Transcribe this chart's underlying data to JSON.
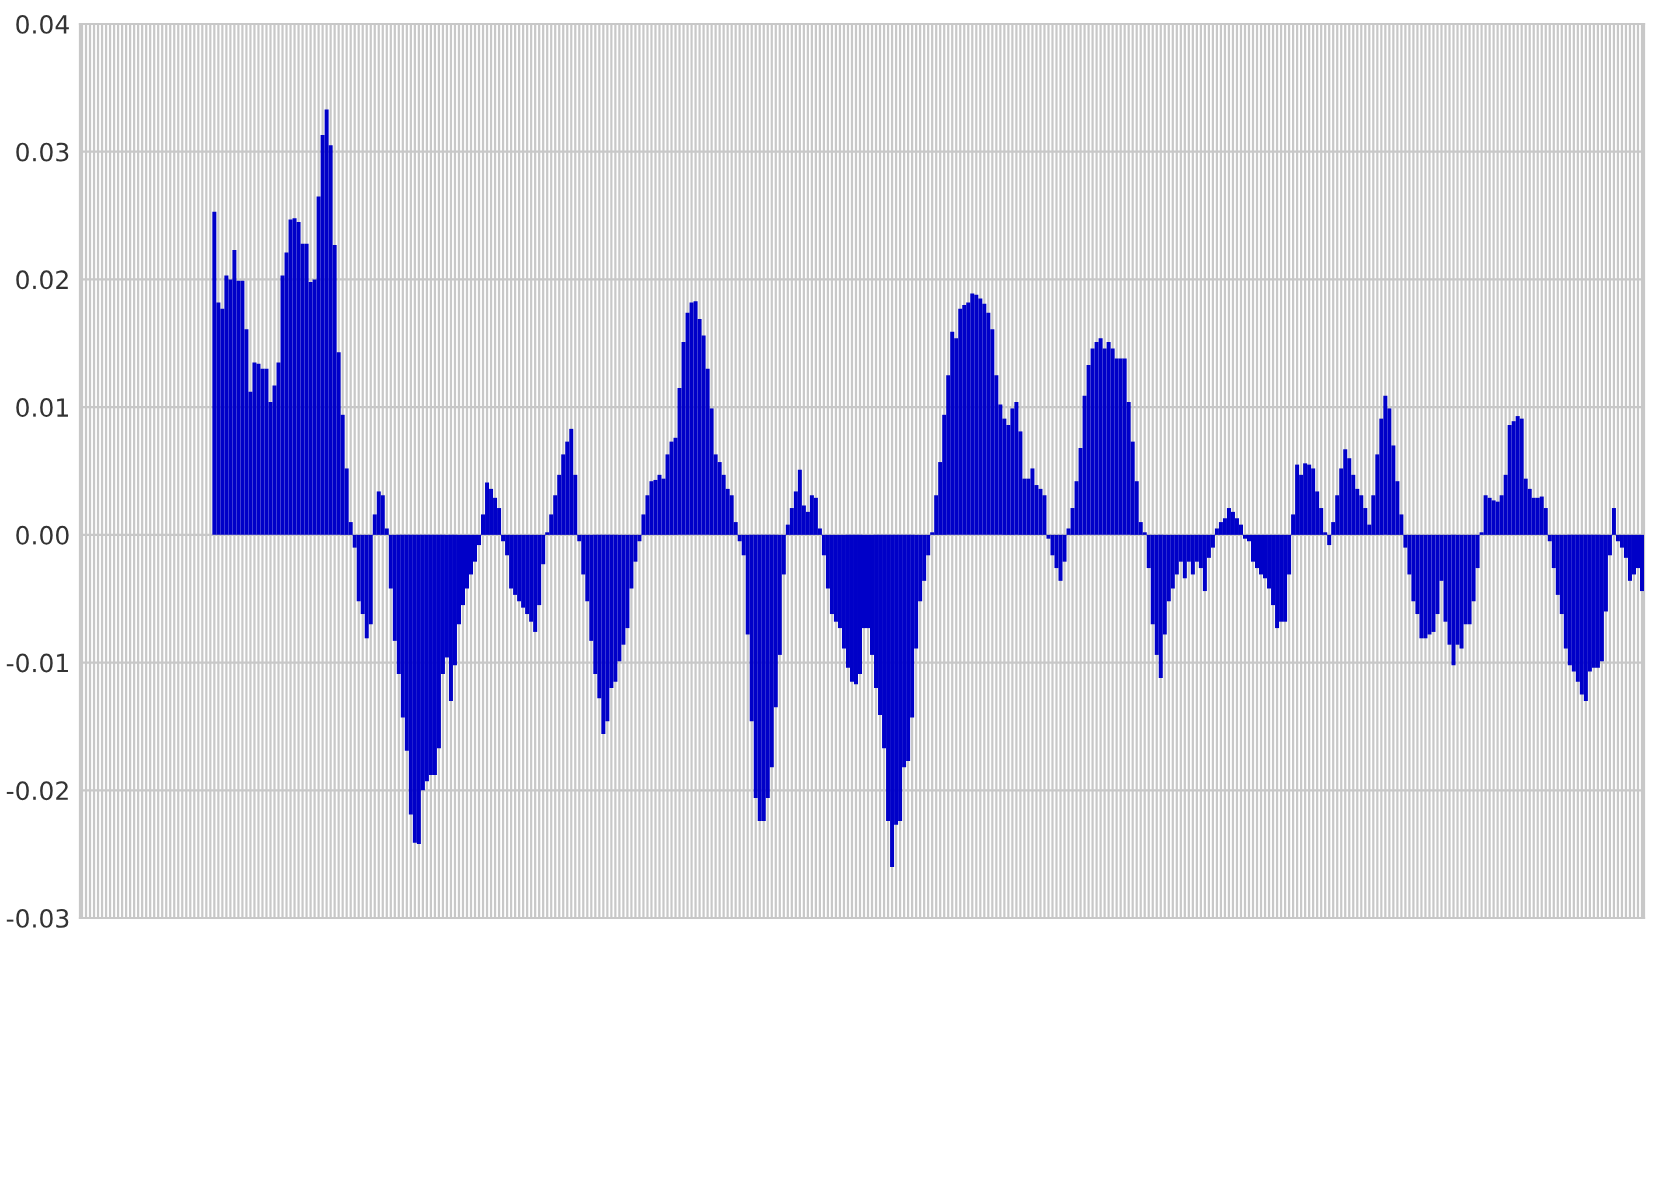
{
  "chart_data": {
    "type": "bar",
    "categories": [
      null,
      null,
      null,
      null,
      null,
      null,
      null,
      null,
      null,
      null,
      null,
      null,
      null,
      null,
      null,
      null,
      null,
      null,
      null,
      null,
      null,
      null,
      null,
      null,
      null,
      null,
      null,
      null,
      null,
      null,
      null,
      null,
      null,
      null,
      null,
      null,
      null,
      null,
      null,
      null,
      null,
      null,
      null,
      null,
      null,
      null,
      null,
      null,
      null,
      null,
      null,
      null,
      null,
      null,
      null,
      null,
      null,
      null,
      null,
      null,
      null,
      null,
      null,
      null,
      null,
      null,
      null,
      null,
      null,
      null,
      null,
      null,
      null,
      null,
      null,
      null,
      null,
      null,
      null,
      null,
      null,
      null,
      null,
      null,
      null,
      null,
      null,
      null,
      null,
      null,
      null,
      null,
      null,
      null,
      null,
      null,
      null,
      null,
      null,
      null,
      null,
      null,
      null,
      null,
      null,
      null,
      null,
      null,
      null,
      null,
      null,
      null,
      null,
      null,
      null,
      null,
      null,
      null,
      null,
      null,
      null,
      null,
      null,
      null,
      null,
      null,
      null,
      null,
      null,
      null,
      null,
      null,
      null,
      null,
      null,
      null,
      null,
      null,
      null,
      null,
      null,
      null,
      null,
      null,
      null,
      null,
      null,
      null,
      null,
      null,
      null,
      null,
      null,
      null,
      null,
      null,
      null,
      null,
      null,
      null,
      null,
      null,
      null,
      null,
      null,
      null,
      null,
      null,
      null,
      null,
      null,
      null,
      null,
      null,
      null,
      null,
      null,
      null,
      null,
      null,
      null,
      null,
      null,
      null,
      null,
      null,
      null,
      null,
      null,
      null,
      null,
      null,
      null,
      null,
      null,
      null,
      null,
      null,
      null,
      null,
      null,
      null,
      null,
      null,
      null,
      null,
      null,
      null,
      null,
      null,
      null,
      null,
      null,
      null,
      null,
      null,
      null,
      null,
      null,
      null,
      null,
      null,
      null,
      null,
      null,
      null,
      null,
      null,
      null,
      null,
      null,
      null,
      null,
      null,
      null,
      null,
      null,
      null,
      null,
      null,
      null,
      null,
      null,
      null,
      null,
      null,
      null,
      null,
      null,
      null,
      null,
      null,
      null,
      null,
      null,
      null,
      null,
      null,
      null,
      null,
      null,
      null,
      null,
      null,
      null,
      null,
      null,
      null,
      null,
      null,
      null,
      null,
      null,
      null,
      null,
      null,
      null,
      null,
      null,
      null,
      null,
      null,
      null,
      null,
      null,
      null,
      null,
      null,
      null,
      null,
      null,
      null,
      null,
      null,
      null,
      null,
      null,
      null,
      null,
      null,
      null,
      null,
      null,
      null,
      null,
      null,
      null,
      null,
      null,
      null,
      null,
      null,
      null,
      null,
      null,
      null,
      null,
      null,
      null,
      null,
      null,
      null,
      null,
      null,
      null,
      null,
      null,
      null,
      null,
      null,
      null,
      null,
      null,
      null,
      null,
      null,
      null,
      null,
      null,
      null,
      null,
      null,
      null,
      null,
      null,
      null,
      null,
      null,
      null,
      null,
      null,
      null,
      null,
      null,
      null,
      null,
      null,
      null,
      null,
      null,
      null,
      null,
      null,
      null,
      null,
      null,
      null,
      null,
      null,
      null,
      null,
      null,
      null,
      null,
      null,
      null,
      null,
      null,
      null,
      null,
      null,
      null,
      null,
      null,
      null,
      null,
      null,
      null,
      null,
      null
    ],
    "values": [
      null,
      null,
      null,
      null,
      null,
      null,
      null,
      null,
      null,
      null,
      null,
      null,
      null,
      null,
      null,
      null,
      null,
      null,
      null,
      null,
      null,
      null,
      null,
      null,
      null,
      null,
      null,
      null,
      null,
      null,
      null,
      null,
      null,
      0.0253,
      0.0182,
      0.0177,
      0.0203,
      0.02,
      0.0223,
      0.0199,
      0.0199,
      0.0161,
      0.0112,
      0.0135,
      0.0134,
      0.013,
      0.013,
      0.0104,
      0.0117,
      0.0135,
      0.0203,
      0.0221,
      0.0247,
      0.0248,
      0.0245,
      0.0228,
      0.0228,
      0.0198,
      0.02,
      0.0265,
      0.0313,
      0.0333,
      0.0305,
      0.0227,
      0.0143,
      0.0094,
      0.0052,
      0.001,
      -0.001,
      -0.0052,
      -0.0062,
      -0.0081,
      -0.007,
      0.0016,
      0.0034,
      0.0031,
      0.0005,
      -0.0042,
      -0.0083,
      -0.0109,
      -0.0143,
      -0.0169,
      -0.0219,
      -0.0241,
      -0.0242,
      -0.02,
      -0.0193,
      -0.0188,
      -0.0188,
      -0.0167,
      -0.0109,
      -0.0096,
      -0.013,
      -0.0102,
      -0.007,
      -0.0055,
      -0.0042,
      -0.0031,
      -0.0021,
      -0.0008,
      0.0016,
      0.0041,
      0.0036,
      0.0029,
      0.0021,
      -0.0005,
      -0.0016,
      -0.0042,
      -0.0047,
      -0.0052,
      -0.0057,
      -0.0062,
      -0.0068,
      -0.0076,
      -0.0055,
      -0.0023,
      0.0002,
      0.0016,
      0.0031,
      0.0047,
      0.0063,
      0.0073,
      0.0083,
      0.0047,
      -0.0005,
      -0.0031,
      -0.0052,
      -0.0083,
      -0.0109,
      -0.0128,
      -0.0156,
      -0.0146,
      -0.012,
      -0.0115,
      -0.0099,
      -0.0086,
      -0.0073,
      -0.0042,
      -0.0021,
      -0.0005,
      0.0016,
      0.0031,
      0.0042,
      0.0043,
      0.0047,
      0.0044,
      0.0063,
      0.0073,
      0.0076,
      0.0115,
      0.0151,
      0.0174,
      0.0182,
      0.0183,
      0.0169,
      0.0156,
      0.013,
      0.0099,
      0.0063,
      0.0057,
      0.0047,
      0.0036,
      0.0031,
      0.001,
      -0.0005,
      -0.0016,
      -0.0078,
      -0.0146,
      -0.0206,
      -0.0224,
      -0.0224,
      -0.0206,
      -0.0182,
      -0.0135,
      -0.0094,
      -0.0031,
      0.0008,
      0.0021,
      0.0034,
      0.0051,
      0.0023,
      0.0018,
      0.0031,
      0.0029,
      0.0005,
      -0.0016,
      -0.0042,
      -0.0062,
      -0.0068,
      -0.0073,
      -0.0089,
      -0.0104,
      -0.0115,
      -0.0117,
      -0.0109,
      -0.0073,
      -0.0073,
      -0.0094,
      -0.012,
      -0.0141,
      -0.0167,
      -0.0224,
      -0.026,
      -0.0227,
      -0.0224,
      -0.0182,
      -0.0177,
      -0.0143,
      -0.0089,
      -0.0052,
      -0.0036,
      -0.0016,
      0.0002,
      0.0031,
      0.0057,
      0.0094,
      0.0125,
      0.0159,
      0.0154,
      0.0177,
      0.018,
      0.0182,
      0.0189,
      0.0188,
      0.0185,
      0.0181,
      0.0174,
      0.0161,
      0.0125,
      0.0102,
      0.0091,
      0.0086,
      0.0099,
      0.0104,
      0.0081,
      0.0044,
      0.0044,
      0.0052,
      0.0039,
      0.0036,
      0.0031,
      -0.0003,
      -0.0016,
      -0.0026,
      -0.0036,
      -0.0021,
      0.0005,
      0.0021,
      0.0042,
      0.0068,
      0.0109,
      0.0133,
      0.0146,
      0.0151,
      0.0154,
      0.0146,
      0.0151,
      0.0146,
      0.0138,
      0.0138,
      0.0138,
      0.0104,
      0.0073,
      0.0042,
      0.001,
      0.0002,
      -0.0026,
      -0.007,
      -0.0094,
      -0.0112,
      -0.0078,
      -0.0052,
      -0.0042,
      -0.0031,
      -0.0021,
      -0.0034,
      -0.0021,
      -0.0031,
      -0.0021,
      -0.0026,
      -0.0044,
      -0.0018,
      -0.001,
      0.0005,
      0.001,
      0.0013,
      0.0021,
      0.0018,
      0.0013,
      0.0008,
      -0.0003,
      -0.0005,
      -0.0021,
      -0.0026,
      -0.0031,
      -0.0034,
      -0.0042,
      -0.0055,
      -0.0073,
      -0.0068,
      -0.0068,
      -0.0031,
      0.0016,
      0.0055,
      0.0047,
      0.0056,
      0.0055,
      0.0052,
      0.0034,
      0.0021,
      0.0002,
      -0.0008,
      0.001,
      0.0031,
      0.0052,
      0.0067,
      0.006,
      0.0047,
      0.0036,
      0.0031,
      0.0021,
      0.0008,
      0.0031,
      0.0063,
      0.0091,
      0.0109,
      0.0099,
      0.007,
      0.0042,
      0.0016,
      -0.001,
      -0.0031,
      -0.0052,
      -0.0062,
      -0.0081,
      -0.0081,
      -0.0078,
      -0.0076,
      -0.0062,
      -0.0036,
      -0.0068,
      -0.0086,
      -0.0102,
      -0.0086,
      -0.0089,
      -0.007,
      -0.007,
      -0.0052,
      -0.0026,
      0.0002,
      0.0031,
      0.0029,
      0.0027,
      0.0026,
      0.0031,
      0.0047,
      0.0086,
      0.0089,
      0.0093,
      0.0091,
      0.0044,
      0.0036,
      0.0029,
      0.0029,
      0.003,
      0.0021,
      -0.0005,
      -0.0026,
      -0.0047,
      -0.0062,
      -0.0089,
      -0.0102,
      -0.0107,
      -0.0115,
      -0.0125,
      -0.013,
      -0.0107,
      -0.0104,
      -0.0104,
      -0.0099,
      -0.006,
      -0.0016,
      0.0021,
      -0.0005,
      -0.001,
      -0.0018,
      -0.0036,
      -0.0031,
      -0.0026,
      -0.0044
    ],
    "color": "#0000c8",
    "ylim": [
      -0.03,
      0.04
    ],
    "yticks": [
      -0.03,
      -0.02,
      -0.01,
      {
        "value": 0.0,
        "label": "0.00"
      },
      0.01,
      0.02,
      0.03,
      0.04
    ],
    "grid": true
  }
}
